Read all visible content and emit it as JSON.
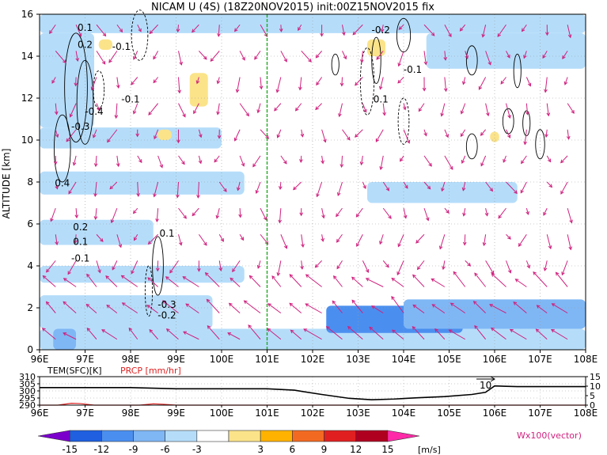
{
  "title": "NICAM U (4S) (18Z20NOV2015) init:00Z15NOV2015 fix",
  "chart_data": [
    {
      "type": "heatmap",
      "panel": "main",
      "ylabel": "ALTITUDE [km]",
      "xlim": [
        96,
        108
      ],
      "ylim": [
        0,
        16
      ],
      "x_ticks": [
        "96E",
        "97E",
        "98E",
        "99E",
        "100E",
        "101E",
        "102E",
        "103E",
        "104E",
        "105E",
        "106E",
        "107E",
        "108E"
      ],
      "y_ticks": [
        "0",
        "2",
        "4",
        "6",
        "8",
        "10",
        "12",
        "14",
        "16"
      ],
      "grid": true,
      "marker_line": {
        "x": 101,
        "color": "#22aa22",
        "style": "dashed"
      },
      "contour_labels": [
        "0.1",
        "0.2",
        "-0.1",
        "-0.1",
        "-0.4",
        "-0.3",
        "0.4",
        "0.2",
        "0.1",
        "-0.1",
        "0.1",
        "-0.3",
        "-0.2",
        "-0.1",
        "0.1",
        "-0.2"
      ],
      "vector_legend": "Wx100(vector)",
      "shading_bands": [
        {
          "x0": 96.0,
          "x1": 108.0,
          "y0": 0.0,
          "y1": 1.0,
          "level": -3
        },
        {
          "x0": 102.3,
          "x1": 105.3,
          "y0": 0.8,
          "y1": 2.1,
          "level": -9
        },
        {
          "x0": 104.0,
          "x1": 108.0,
          "y0": 1.0,
          "y1": 2.4,
          "level": -6
        },
        {
          "x0": 96.0,
          "x1": 99.8,
          "y0": 1.0,
          "y1": 2.6,
          "level": -3
        },
        {
          "x0": 96.0,
          "x1": 100.5,
          "y0": 3.2,
          "y1": 4.0,
          "level": -3
        },
        {
          "x0": 96.0,
          "x1": 98.5,
          "y0": 5.0,
          "y1": 6.2,
          "level": -3
        },
        {
          "x0": 96.0,
          "x1": 100.5,
          "y0": 7.4,
          "y1": 8.5,
          "level": -3
        },
        {
          "x0": 103.2,
          "x1": 106.5,
          "y0": 7.0,
          "y1": 8.0,
          "level": -3
        },
        {
          "x0": 96.0,
          "x1": 100.0,
          "y0": 9.6,
          "y1": 10.6,
          "level": -3
        },
        {
          "x0": 96.0,
          "x1": 108.0,
          "y0": 15.1,
          "y1": 16.0,
          "level": -3
        },
        {
          "x0": 104.5,
          "x1": 108.0,
          "y0": 13.4,
          "y1": 15.1,
          "level": -3
        },
        {
          "x0": 96.0,
          "x1": 97.2,
          "y0": 10.6,
          "y1": 15.1,
          "level": -3
        },
        {
          "x0": 96.3,
          "x1": 96.8,
          "y0": 0.0,
          "y1": 1.0,
          "level": -6
        },
        {
          "x0": 103.2,
          "x1": 103.6,
          "y0": 14.0,
          "y1": 14.8,
          "level": 3
        },
        {
          "x0": 99.3,
          "x1": 99.7,
          "y0": 11.6,
          "y1": 13.2,
          "level": 3
        },
        {
          "x0": 98.6,
          "x1": 98.9,
          "y0": 10.0,
          "y1": 10.5,
          "level": 3
        },
        {
          "x0": 105.9,
          "x1": 106.1,
          "y0": 9.9,
          "y1": 10.4,
          "level": 3
        },
        {
          "x0": 97.3,
          "x1": 97.6,
          "y0": 14.3,
          "y1": 14.8,
          "level": 3
        }
      ]
    },
    {
      "type": "line",
      "panel": "surface",
      "labels": [
        "TEM(SFC)[K]",
        "PRCP [mm/hr]"
      ],
      "label_colors": [
        "#000000",
        "#dd2222"
      ],
      "xlim": [
        96,
        108
      ],
      "x_ticks": [
        "96E",
        "97E",
        "98E",
        "99E",
        "100E",
        "101E",
        "102E",
        "103E",
        "104E",
        "105E",
        "106E",
        "107E",
        "108E"
      ],
      "left_axis": {
        "ylim": [
          290,
          310
        ],
        "ticks": [
          "290",
          "295",
          "300",
          "305",
          "310"
        ]
      },
      "right_axis": {
        "ylim": [
          0,
          15
        ],
        "ticks": [
          "0",
          "5",
          "10",
          "15"
        ]
      },
      "annotation": "10",
      "series": [
        {
          "name": "TEM(SFC)[K]",
          "color": "#000000",
          "x": [
            96.0,
            98.0,
            99.0,
            101.0,
            101.6,
            102.2,
            102.8,
            103.3,
            103.8,
            104.3,
            104.9,
            105.5,
            105.8,
            106.0,
            106.5,
            108.0
          ],
          "y": [
            302.3,
            302.3,
            301.5,
            301.5,
            300.5,
            297.5,
            294.8,
            293.8,
            294.3,
            295.2,
            296.0,
            297.5,
            299.0,
            303.5,
            303.0,
            303.0
          ]
        },
        {
          "name": "PRCP [mm/hr]",
          "color": "#dd2222",
          "x": [
            96.0,
            96.4,
            96.7,
            96.9,
            97.2,
            98.2,
            98.5,
            98.7,
            99.0,
            108.0
          ],
          "y": [
            0.0,
            0.0,
            1.0,
            0.8,
            0.0,
            0.0,
            0.7,
            0.5,
            0.0,
            0.0
          ]
        }
      ]
    },
    {
      "type": "colorbar",
      "panel": "legend",
      "unit": "[m/s]",
      "tick_labels": [
        "-15",
        "-12",
        "-9",
        "-6",
        "-3",
        "3",
        "6",
        "9",
        "12",
        "15"
      ],
      "colors": [
        "#7b00cc",
        "#1f5fe0",
        "#4a8ff0",
        "#7fb7f5",
        "#b5ddfa",
        "#ffffff",
        "#fbe38a",
        "#ffb300",
        "#f26a21",
        "#e02020",
        "#b00020",
        "#ff2aa8"
      ]
    }
  ]
}
